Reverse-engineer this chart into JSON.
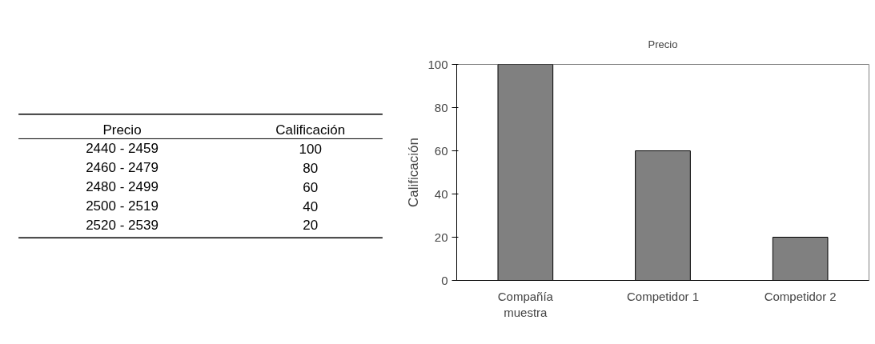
{
  "chart_data": [
    {
      "type": "heatmap",
      "ylabel": "Precio",
      "categories": [
        "Calificación"
      ],
      "y_categories": [
        "2440 - 2459",
        "2460 - 2479",
        "2480 - 2499",
        "2500 - 2519",
        "2520 - 2539"
      ],
      "cells": [
        [
          100
        ],
        [
          80
        ],
        [
          60
        ],
        [
          40
        ],
        [
          20
        ]
      ],
      "data_labels": true
    },
    {
      "type": "bar",
      "title": "Precio",
      "ylabel": "Calificación",
      "categories": [
        "Compañía\nmuestra",
        "Competidor 1",
        "Competidor 2"
      ],
      "values": [
        100,
        60,
        20
      ],
      "color": "#808080",
      "ylim": [
        0,
        100
      ],
      "yticks": [
        0,
        20,
        40,
        60,
        80,
        100
      ],
      "grid": false
    }
  ]
}
